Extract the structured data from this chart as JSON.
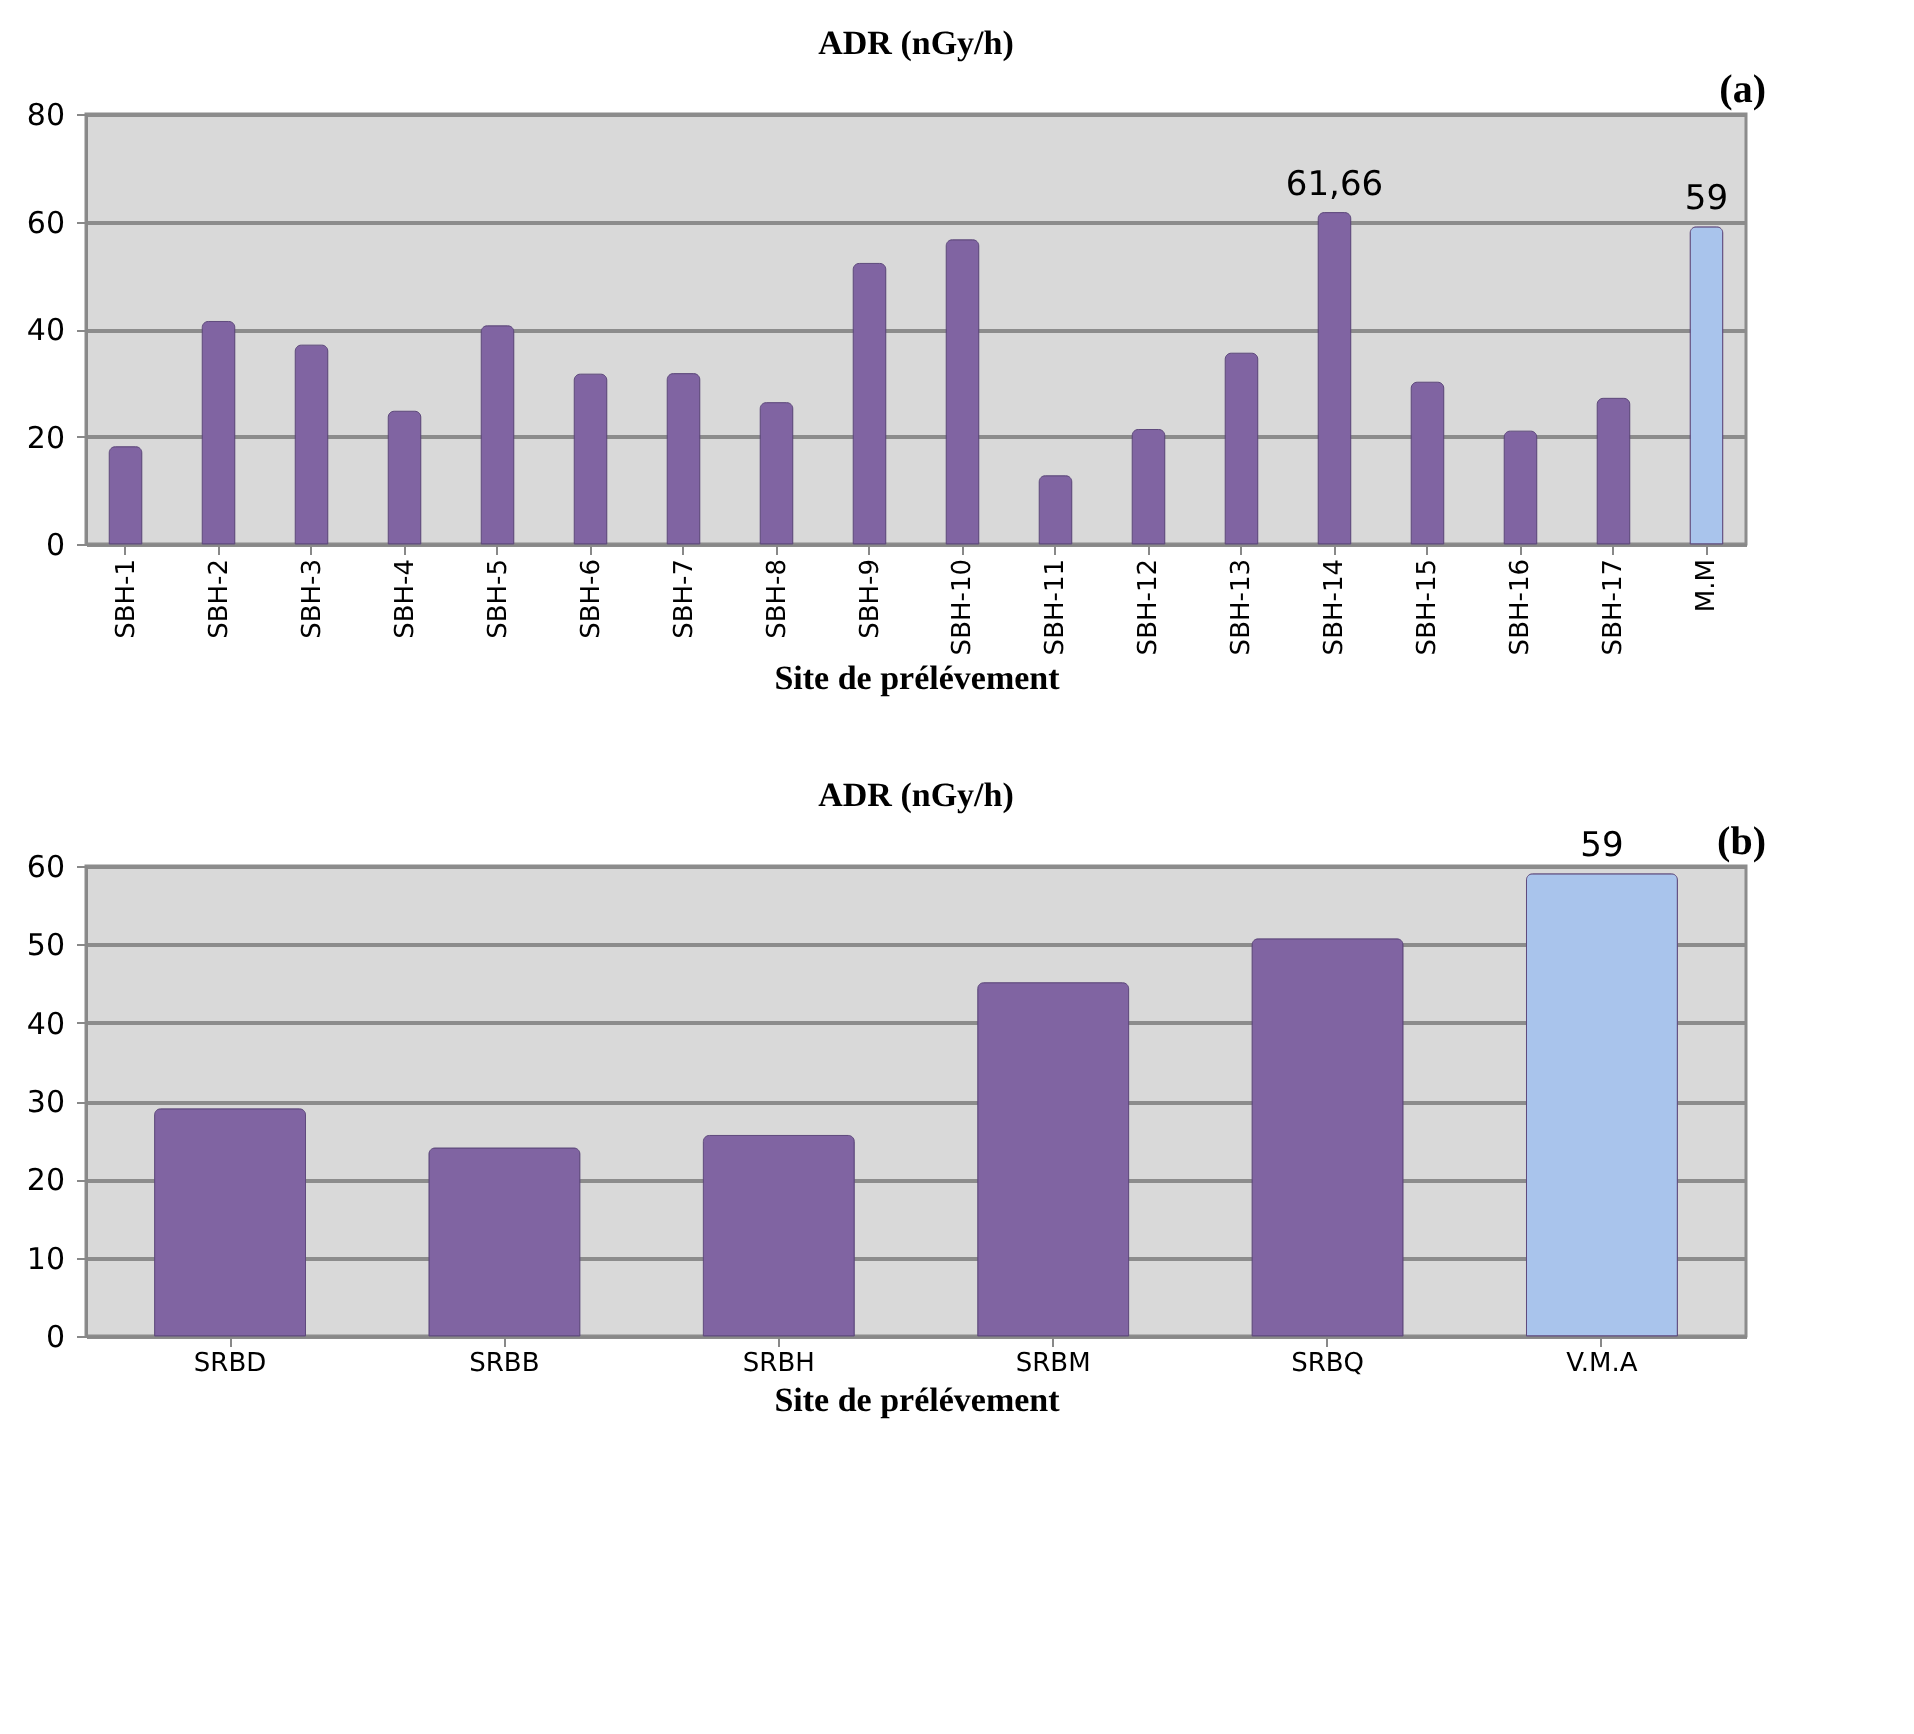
{
  "chart_data": [
    {
      "type": "bar",
      "title": "ADR (nGy/h)",
      "xlabel": "Site de prélévement",
      "annotations": [
        "(a)"
      ],
      "categories": [
        "SBH-1",
        "SBH-2",
        "SBH-3",
        "SBH-4",
        "SBH-5",
        "SBH-6",
        "SBH-7",
        "SBH-8",
        "SBH-9",
        "SBH-10",
        "SBH-11",
        "SBH-12",
        "SBH-13",
        "SBH-14",
        "SBH-15",
        "SBH-16",
        "SBH-17",
        "M.M"
      ],
      "values": [
        18.1,
        41.4,
        37.0,
        24.7,
        40.6,
        31.6,
        31.7,
        26.3,
        52.2,
        56.6,
        12.7,
        21.3,
        35.5,
        61.66,
        30.1,
        21.0,
        27.1,
        59
      ],
      "value_labels": [
        null,
        null,
        null,
        null,
        null,
        null,
        null,
        null,
        null,
        null,
        null,
        null,
        null,
        "61,66",
        null,
        null,
        null,
        "59"
      ],
      "colors": [
        "#8064a2",
        "#8064a2",
        "#8064a2",
        "#8064a2",
        "#8064a2",
        "#8064a2",
        "#8064a2",
        "#8064a2",
        "#8064a2",
        "#8064a2",
        "#8064a2",
        "#8064a2",
        "#8064a2",
        "#8064a2",
        "#8064a2",
        "#8064a2",
        "#8064a2",
        "#a9c4ec"
      ],
      "ylim": [
        0,
        80
      ],
      "yticks": [
        0,
        20,
        40,
        60,
        80
      ],
      "grid": "y"
    },
    {
      "type": "bar",
      "title": "ADR (nGy/h)",
      "xlabel": "Site de prélévement",
      "annotations": [
        "(b)"
      ],
      "categories": [
        "SRBD",
        "SRBB",
        "SRBH",
        "SRBM",
        "SRBQ",
        "V.M.A"
      ],
      "values": [
        29,
        24,
        25.6,
        45.1,
        50.7,
        59
      ],
      "value_labels": [
        null,
        null,
        null,
        null,
        null,
        "59"
      ],
      "colors": [
        "#8064a2",
        "#8064a2",
        "#8064a2",
        "#8064a2",
        "#8064a2",
        "#a9c4ec"
      ],
      "ylim": [
        0,
        60
      ],
      "yticks": [
        0,
        10,
        20,
        30,
        40,
        50,
        60
      ],
      "grid": "y"
    }
  ]
}
